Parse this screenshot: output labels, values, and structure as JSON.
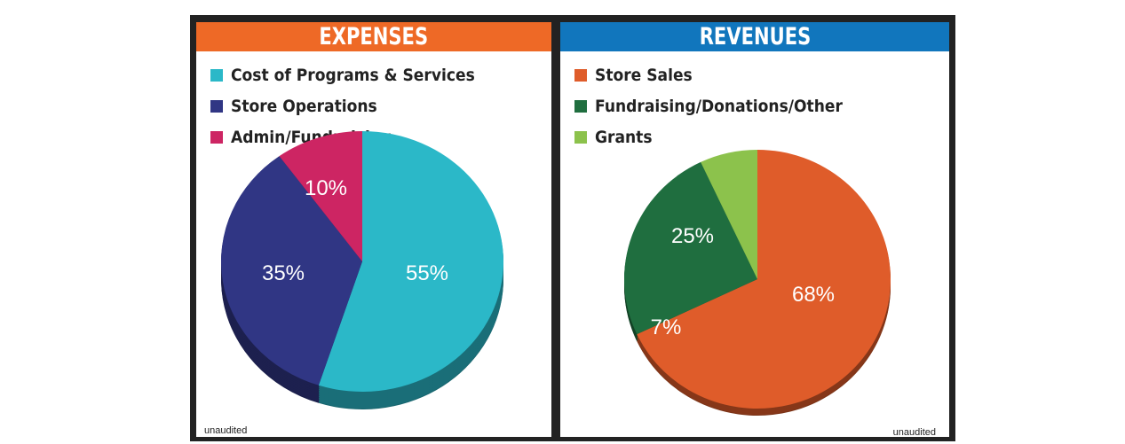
{
  "chart_data": [
    {
      "type": "pie",
      "title": "EXPENSES",
      "header_color": "#ee6926",
      "series": [
        {
          "name": "Cost of Programs & Services",
          "value": 55,
          "label": "55%",
          "color": "#2bb8c8"
        },
        {
          "name": "Store Operations",
          "value": 35,
          "label": "35%",
          "color": "#303684"
        },
        {
          "name": "Admin/Fundraising",
          "value": 10,
          "label": "10%",
          "color": "#cd2563"
        }
      ],
      "note": "unaudited"
    },
    {
      "type": "pie",
      "title": "REVENUES",
      "header_color": "#1176bd",
      "series": [
        {
          "name": "Store Sales",
          "value": 68,
          "label": "68%",
          "color": "#df5c2a"
        },
        {
          "name": "Fundraising/Donations/Other",
          "value": 25,
          "label": "25%",
          "color": "#1f6e3f"
        },
        {
          "name": "Grants",
          "value": 7,
          "label": "7%",
          "color": "#8cc24c"
        }
      ],
      "note": "unaudited"
    }
  ]
}
